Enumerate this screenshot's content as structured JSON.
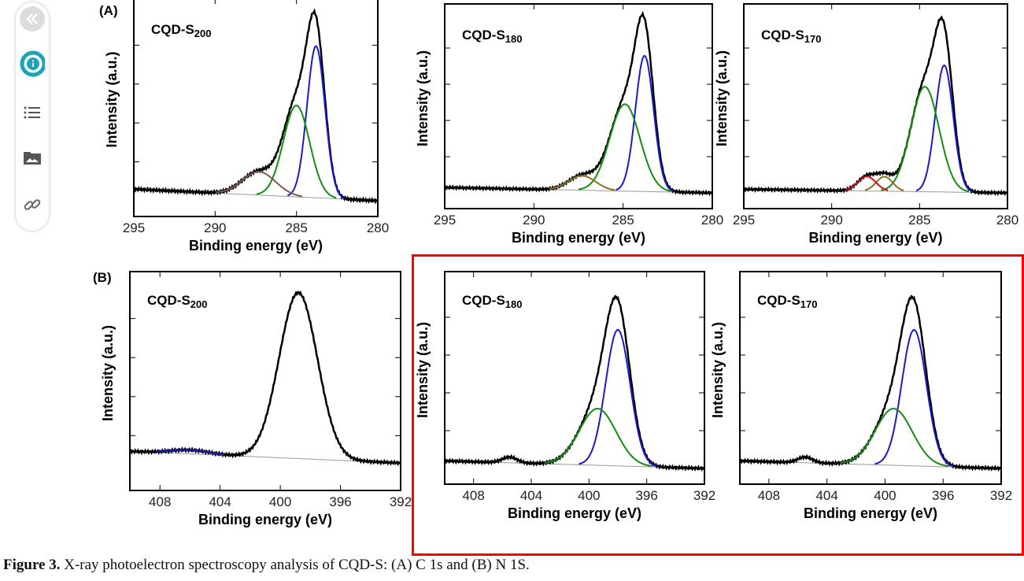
{
  "sidebar": {
    "items": [
      {
        "icon": "collapse-chevrons-icon"
      },
      {
        "icon": "info-icon",
        "active": true
      },
      {
        "icon": "list-icon"
      },
      {
        "icon": "image-folder-icon"
      },
      {
        "icon": "link-icon"
      }
    ],
    "accent": "#1ba3b8"
  },
  "panels": {
    "a": "(A)",
    "b": "(B)"
  },
  "caption": {
    "label": "Figure 3.",
    "text": " X-ray photoelectron spectroscopy analysis of CQD-S: (A) C 1s and (B) N 1S."
  },
  "highlight_color": "#ff0000",
  "chart_data": [
    {
      "type": "line",
      "title_main": "CQD-S",
      "title_sub": "200",
      "xlabel": "Binding energy (eV)",
      "ylabel": "Intensity (a.u.)",
      "xlim": [
        295,
        280
      ],
      "xticks": [
        "295",
        "290",
        "285",
        "280"
      ],
      "background": [
        0.06,
        0.0
      ],
      "series": [
        {
          "color": "#000000",
          "role": "envelope"
        },
        {
          "color": "#1a1ac8",
          "center": 283.8,
          "amp": 0.78,
          "fwhm": 1.3
        },
        {
          "color": "#148c14",
          "center": 285.0,
          "amp": 0.47,
          "fwhm": 1.9
        },
        {
          "color": "#7a5a50",
          "center": 287.3,
          "amp": 0.12,
          "fwhm": 2.4
        }
      ]
    },
    {
      "type": "line",
      "title_main": "CQD-S",
      "title_sub": "180",
      "xlabel": "Binding energy (eV)",
      "ylabel": "Intensity (a.u.)",
      "xlim": [
        295,
        280
      ],
      "xticks": [
        "295",
        "290",
        "285",
        "280"
      ],
      "background": [
        0.03,
        0.0
      ],
      "series": [
        {
          "color": "#000000",
          "role": "envelope"
        },
        {
          "color": "#1a1ac8",
          "center": 283.8,
          "amp": 0.75,
          "fwhm": 1.2
        },
        {
          "color": "#148c14",
          "center": 284.9,
          "amp": 0.48,
          "fwhm": 2.0
        },
        {
          "color": "#8a7020",
          "center": 287.3,
          "amp": 0.08,
          "fwhm": 1.8
        }
      ]
    },
    {
      "type": "line",
      "title_main": "CQD-S",
      "title_sub": "170",
      "xlabel": "Binding energy (eV)",
      "ylabel": "Intensity (a.u.)",
      "xlim": [
        295,
        280
      ],
      "xticks": [
        "295",
        "290",
        "285",
        "280"
      ],
      "background": [
        0.02,
        0.0
      ],
      "series": [
        {
          "color": "#000000",
          "role": "envelope"
        },
        {
          "color": "#1a1ac8",
          "center": 283.6,
          "amp": 0.7,
          "fwhm": 1.2
        },
        {
          "color": "#148c14",
          "center": 284.7,
          "amp": 0.58,
          "fwhm": 1.9
        },
        {
          "color": "#8a7020",
          "center": 287.0,
          "amp": 0.08,
          "fwhm": 1.1
        },
        {
          "color": "#d01010",
          "center": 288.0,
          "amp": 0.08,
          "fwhm": 1.2
        }
      ]
    },
    {
      "type": "line",
      "title_main": "CQD-S",
      "title_sub": "200",
      "xlabel": "Binding energy (eV)",
      "ylabel": "Intensity (a.u.)",
      "xlim": [
        410,
        392
      ],
      "xticks": [
        "408",
        "404",
        "400",
        "396",
        "392"
      ],
      "background": [
        0.12,
        0.06
      ],
      "series": [
        {
          "color": "#000000",
          "role": "envelope"
        },
        {
          "color": "#000000",
          "center": 398.8,
          "amp": 0.85,
          "fwhm": 3.0,
          "dotted": true
        },
        {
          "color": "#1a1ac8",
          "center": 406.0,
          "amp": 0.02,
          "fwhm": 3.0
        }
      ]
    },
    {
      "type": "line",
      "title_main": "CQD-S",
      "title_sub": "180",
      "xlabel": "Binding energy (eV)",
      "ylabel": "Intensity (a.u.)",
      "xlim": [
        410,
        392
      ],
      "xticks": [
        "408",
        "404",
        "400",
        "396",
        "392"
      ],
      "background": [
        0.04,
        0.0
      ],
      "series": [
        {
          "color": "#000000",
          "role": "envelope"
        },
        {
          "color": "#1a1ac8",
          "center": 398.0,
          "amp": 0.72,
          "fwhm": 2.0
        },
        {
          "color": "#148c14",
          "center": 399.4,
          "amp": 0.3,
          "fwhm": 3.0
        },
        {
          "color": "#000000",
          "center": 405.5,
          "amp": 0.03,
          "fwhm": 1.2,
          "hidden": true
        }
      ]
    },
    {
      "type": "line",
      "title_main": "CQD-S",
      "title_sub": "170",
      "xlabel": "Binding energy (eV)",
      "ylabel": "Intensity (a.u.)",
      "xlim": [
        410,
        392
      ],
      "xticks": [
        "408",
        "404",
        "400",
        "396",
        "392"
      ],
      "background": [
        0.04,
        0.0
      ],
      "series": [
        {
          "color": "#000000",
          "role": "envelope"
        },
        {
          "color": "#1a1ac8",
          "center": 398.0,
          "amp": 0.72,
          "fwhm": 2.0
        },
        {
          "color": "#148c14",
          "center": 399.4,
          "amp": 0.3,
          "fwhm": 3.0
        },
        {
          "color": "#000000",
          "center": 405.5,
          "amp": 0.03,
          "fwhm": 1.2,
          "hidden": true
        }
      ]
    }
  ]
}
